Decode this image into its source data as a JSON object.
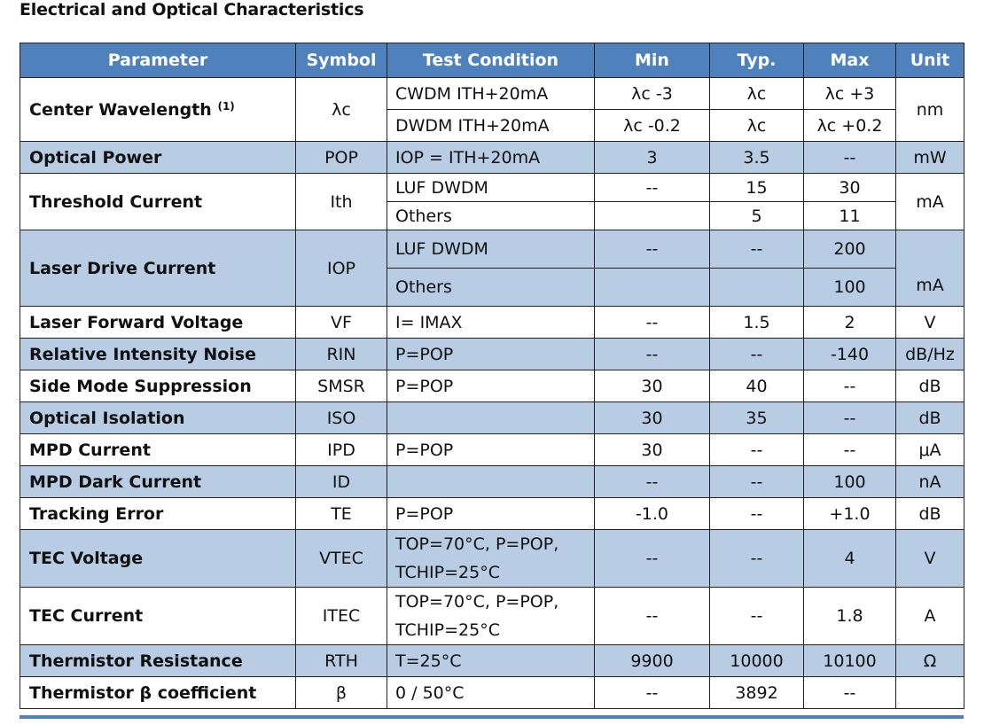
{
  "title": "Electrical and Optical Characteristics",
  "headers": {
    "parameter": "Parameter",
    "symbol": "Symbol",
    "condition": "Test Condition",
    "min": "Min",
    "typ": "Typ.",
    "max": "Max",
    "unit": "Unit"
  },
  "rows": {
    "center_wavelength": {
      "param": "Center Wavelength",
      "note": "(1)",
      "symbol": "λc",
      "unit": "nm",
      "cwdm": {
        "cond": "CWDM  ITH+20mA",
        "min": "λc -3",
        "typ": "λc",
        "max": "λc +3"
      },
      "dwdm": {
        "cond": "DWDM ITH+20mA",
        "min": "λc -0.2",
        "typ": "λc",
        "max": "λc +0.2"
      }
    },
    "optical_power": {
      "param": "Optical Power",
      "symbol": "POP",
      "cond": "IOP = ITH+20mA",
      "min": "3",
      "typ": "3.5",
      "max": "--",
      "unit": "mW"
    },
    "threshold_current": {
      "param": "Threshold Current",
      "symbol": "Ith",
      "unit": "mA",
      "luf": {
        "cond": "LUF DWDM",
        "min": "--",
        "typ": "15",
        "max": "30"
      },
      "others": {
        "cond": "Others",
        "min": "",
        "typ": "5",
        "max": "11"
      }
    },
    "laser_drive_current": {
      "param": "Laser Drive Current",
      "symbol": "IOP",
      "unit": "mA",
      "luf": {
        "cond": "LUF DWDM",
        "min": "--",
        "typ": "--",
        "max": "200"
      },
      "others": {
        "cond": "Others",
        "min": "",
        "typ": "",
        "max": "100"
      }
    },
    "forward_voltage": {
      "param": "Laser Forward Voltage",
      "symbol": "VF",
      "cond": "I= IMAX",
      "min": "--",
      "typ": "1.5",
      "max": "2",
      "unit": "V"
    },
    "rin": {
      "param": "Relative Intensity Noise",
      "symbol": "RIN",
      "cond": "P=POP",
      "min": "--",
      "typ": "--",
      "max": "-140",
      "unit": "dB/Hz"
    },
    "smsr": {
      "param": "Side Mode Suppression",
      "symbol": "SMSR",
      "cond": "P=POP",
      "min": "30",
      "typ": "40",
      "max": "--",
      "unit": "dB"
    },
    "isolation": {
      "param": "Optical Isolation",
      "symbol": "ISO",
      "cond": "",
      "min": "30",
      "typ": "35",
      "max": "--",
      "unit": "dB"
    },
    "mpd_current": {
      "param": "MPD Current",
      "symbol": "IPD",
      "cond": "P=POP",
      "min": "30",
      "typ": "--",
      "max": "--",
      "unit": "μA"
    },
    "mpd_dark": {
      "param": "MPD Dark Current",
      "symbol": "ID",
      "cond": "",
      "min": "--",
      "typ": "--",
      "max": "100",
      "unit": "nA"
    },
    "tracking_error": {
      "param": "Tracking Error",
      "symbol": "TE",
      "cond": "P=POP",
      "min": "-1.0",
      "typ": "--",
      "max": "+1.0",
      "unit": "dB"
    },
    "tec_voltage": {
      "param": "TEC Voltage",
      "symbol": "VTEC",
      "cond1": "TOP=70°C, P=POP,",
      "cond2": "TCHIP=25°C",
      "min": "--",
      "typ": "--",
      "max": "4",
      "unit": "V"
    },
    "tec_current": {
      "param": "TEC Current",
      "symbol": "ITEC",
      "cond1": "TOP=70°C, P=POP,",
      "cond2": "TCHIP=25°C",
      "min": "--",
      "typ": "--",
      "max": "1.8",
      "unit": "A"
    },
    "thermistor_r": {
      "param": "Thermistor Resistance",
      "symbol": "RTH",
      "cond": "T=25°C",
      "min": "9900",
      "typ": "10000",
      "max": "10100",
      "unit": "Ω"
    },
    "thermistor_b": {
      "param": "Thermistor β coefficient",
      "symbol": "β",
      "cond": "0 / 50°C",
      "min": "--",
      "typ": "3892",
      "max": "--",
      "unit": ""
    }
  }
}
